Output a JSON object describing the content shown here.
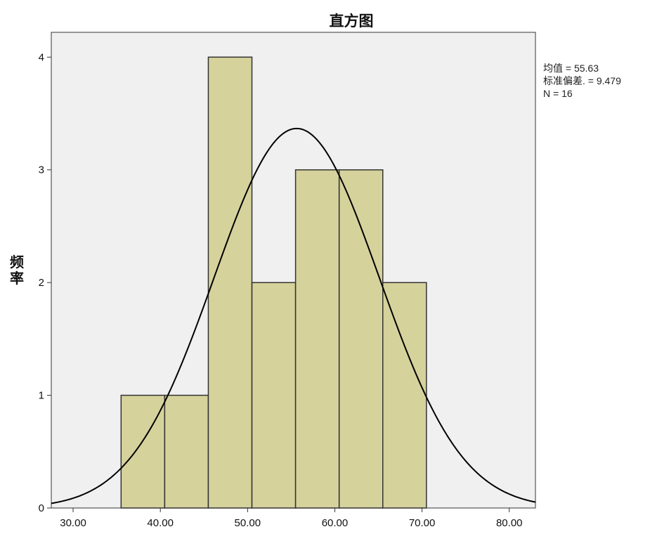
{
  "chart_data": {
    "type": "bar",
    "title": "直方图",
    "xlabel": "",
    "ylabel": "频率",
    "xlim": [
      27.5,
      83.0
    ],
    "ylim": [
      0,
      4.22
    ],
    "x_ticks": [
      30,
      40,
      50,
      60,
      70,
      80
    ],
    "x_tick_labels": [
      "30.00",
      "40.00",
      "50.00",
      "60.00",
      "70.00",
      "80.00"
    ],
    "y_ticks": [
      0,
      1,
      2,
      3,
      4
    ],
    "y_tick_labels": [
      "0",
      "1",
      "2",
      "3",
      "4"
    ],
    "bins": [
      {
        "start": 35.5,
        "end": 40.5,
        "count": 1
      },
      {
        "start": 40.5,
        "end": 45.5,
        "count": 1
      },
      {
        "start": 45.5,
        "end": 50.5,
        "count": 4
      },
      {
        "start": 50.5,
        "end": 55.5,
        "count": 2
      },
      {
        "start": 55.5,
        "end": 60.5,
        "count": 3
      },
      {
        "start": 60.5,
        "end": 65.5,
        "count": 3
      },
      {
        "start": 65.5,
        "end": 70.5,
        "count": 2
      }
    ],
    "normal_curve": {
      "mean": 55.63,
      "std": 9.479,
      "n": 16,
      "bin_width": 5
    },
    "stats": {
      "mean_label": "均值 = 55.63",
      "std_label": "标准偏差. = 9.479",
      "n_label": "N = 16"
    },
    "grid": false,
    "legend": "right-top",
    "colors": {
      "bar_fill": "#d6d29c",
      "bar_stroke": "#333333",
      "plot_background": "#f0f0f0",
      "curve": "#000000"
    }
  }
}
